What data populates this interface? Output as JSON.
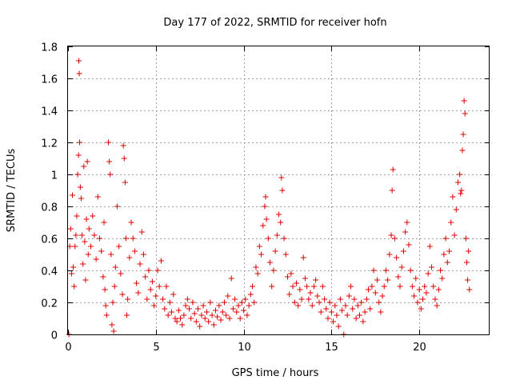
{
  "chart_data": {
    "type": "scatter",
    "title": "Day 177 of 2022, SRMTID for receiver hofn",
    "xlabel": "GPS time / hours",
    "ylabel": "SRMTID / TECUs",
    "xlim": [
      0,
      24
    ],
    "ylim": [
      0,
      1.8
    ],
    "xticks": [
      0,
      5,
      10,
      15,
      20
    ],
    "yticks": [
      0,
      0.2,
      0.4,
      0.6,
      0.8,
      1,
      1.2,
      1.4,
      1.6,
      1.8
    ],
    "xtick_labels": [
      "0",
      "5",
      "10",
      "15",
      "20"
    ],
    "ytick_labels": [
      "0",
      "0.2",
      "0.4",
      "0.6",
      "0.8",
      "1",
      "1.2",
      "1.4",
      "1.6",
      "1.8"
    ],
    "grid": true,
    "marker": "+",
    "color": "#e00000",
    "series": [
      {
        "name": "hofn",
        "points": [
          [
            0.05,
            0.0
          ],
          [
            0.1,
            0.55
          ],
          [
            0.15,
            0.66
          ],
          [
            0.2,
            0.38
          ],
          [
            0.25,
            0.87
          ],
          [
            0.3,
            0.42
          ],
          [
            0.35,
            0.3
          ],
          [
            0.4,
            0.55
          ],
          [
            0.45,
            0.62
          ],
          [
            0.5,
            0.74
          ],
          [
            0.55,
            1.0
          ],
          [
            0.6,
            1.12
          ],
          [
            0.62,
            1.71
          ],
          [
            0.64,
            1.63
          ],
          [
            0.66,
            1.2
          ],
          [
            0.7,
            0.92
          ],
          [
            0.75,
            0.85
          ],
          [
            0.8,
            0.62
          ],
          [
            0.85,
            0.44
          ],
          [
            0.9,
            1.05
          ],
          [
            0.95,
            0.58
          ],
          [
            1.0,
            0.34
          ],
          [
            1.05,
            0.72
          ],
          [
            1.1,
            1.08
          ],
          [
            1.15,
            0.5
          ],
          [
            1.2,
            0.66
          ],
          [
            1.3,
            0.55
          ],
          [
            1.4,
            0.74
          ],
          [
            1.5,
            0.62
          ],
          [
            1.6,
            0.47
          ],
          [
            1.7,
            0.86
          ],
          [
            1.8,
            0.6
          ],
          [
            1.9,
            0.52
          ],
          [
            2.0,
            0.36
          ],
          [
            2.05,
            0.7
          ],
          [
            2.1,
            0.28
          ],
          [
            2.15,
            0.18
          ],
          [
            2.2,
            0.12
          ],
          [
            2.3,
            1.2
          ],
          [
            2.35,
            1.08
          ],
          [
            2.4,
            1.0
          ],
          [
            2.45,
            0.5
          ],
          [
            2.5,
            0.06
          ],
          [
            2.55,
            0.2
          ],
          [
            2.6,
            0.02
          ],
          [
            2.65,
            0.3
          ],
          [
            2.7,
            0.42
          ],
          [
            2.8,
            0.8
          ],
          [
            2.9,
            0.55
          ],
          [
            3.0,
            0.38
          ],
          [
            3.1,
            0.25
          ],
          [
            3.15,
            1.18
          ],
          [
            3.2,
            1.1
          ],
          [
            3.25,
            0.95
          ],
          [
            3.3,
            0.6
          ],
          [
            3.35,
            0.12
          ],
          [
            3.4,
            0.22
          ],
          [
            3.5,
            0.48
          ],
          [
            3.6,
            0.7
          ],
          [
            3.7,
            0.6
          ],
          [
            3.8,
            0.52
          ],
          [
            3.9,
            0.32
          ],
          [
            4.0,
            0.26
          ],
          [
            4.1,
            0.44
          ],
          [
            4.2,
            0.64
          ],
          [
            4.3,
            0.5
          ],
          [
            4.4,
            0.36
          ],
          [
            4.5,
            0.22
          ],
          [
            4.6,
            0.4
          ],
          [
            4.7,
            0.28
          ],
          [
            4.8,
            0.33
          ],
          [
            4.9,
            0.18
          ],
          [
            5.0,
            0.24
          ],
          [
            5.1,
            0.4
          ],
          [
            5.2,
            0.3
          ],
          [
            5.3,
            0.46
          ],
          [
            5.4,
            0.22
          ],
          [
            5.5,
            0.16
          ],
          [
            5.6,
            0.3
          ],
          [
            5.7,
            0.12
          ],
          [
            5.8,
            0.2
          ],
          [
            5.9,
            0.14
          ],
          [
            6.0,
            0.25
          ],
          [
            6.1,
            0.1
          ],
          [
            6.2,
            0.08
          ],
          [
            6.3,
            0.15
          ],
          [
            6.4,
            0.1
          ],
          [
            6.5,
            0.06
          ],
          [
            6.6,
            0.12
          ],
          [
            6.7,
            0.18
          ],
          [
            6.8,
            0.22
          ],
          [
            6.9,
            0.16
          ],
          [
            7.0,
            0.1
          ],
          [
            7.1,
            0.2
          ],
          [
            7.2,
            0.13
          ],
          [
            7.3,
            0.08
          ],
          [
            7.4,
            0.16
          ],
          [
            7.5,
            0.05
          ],
          [
            7.6,
            0.12
          ],
          [
            7.7,
            0.18
          ],
          [
            7.8,
            0.1
          ],
          [
            7.9,
            0.14
          ],
          [
            8.0,
            0.08
          ],
          [
            8.1,
            0.2
          ],
          [
            8.2,
            0.12
          ],
          [
            8.3,
            0.06
          ],
          [
            8.4,
            0.15
          ],
          [
            8.5,
            0.11
          ],
          [
            8.6,
            0.18
          ],
          [
            8.7,
            0.09
          ],
          [
            8.8,
            0.14
          ],
          [
            8.9,
            0.2
          ],
          [
            9.0,
            0.12
          ],
          [
            9.1,
            0.24
          ],
          [
            9.2,
            0.1
          ],
          [
            9.3,
            0.35
          ],
          [
            9.4,
            0.16
          ],
          [
            9.5,
            0.22
          ],
          [
            9.6,
            0.14
          ],
          [
            9.7,
            0.18
          ],
          [
            9.8,
            0.1
          ],
          [
            9.9,
            0.2
          ],
          [
            10.0,
            0.15
          ],
          [
            10.1,
            0.22
          ],
          [
            10.2,
            0.12
          ],
          [
            10.3,
            0.18
          ],
          [
            10.4,
            0.25
          ],
          [
            10.5,
            0.3
          ],
          [
            10.6,
            0.2
          ],
          [
            10.7,
            0.42
          ],
          [
            10.8,
            0.38
          ],
          [
            10.9,
            0.55
          ],
          [
            11.0,
            0.5
          ],
          [
            11.1,
            0.68
          ],
          [
            11.2,
            0.8
          ],
          [
            11.25,
            0.86
          ],
          [
            11.3,
            0.72
          ],
          [
            11.4,
            0.6
          ],
          [
            11.5,
            0.45
          ],
          [
            11.6,
            0.3
          ],
          [
            11.7,
            0.4
          ],
          [
            11.8,
            0.52
          ],
          [
            11.9,
            0.62
          ],
          [
            12.0,
            0.75
          ],
          [
            12.1,
            0.7
          ],
          [
            12.15,
            0.98
          ],
          [
            12.2,
            0.9
          ],
          [
            12.3,
            0.6
          ],
          [
            12.4,
            0.5
          ],
          [
            12.5,
            0.36
          ],
          [
            12.6,
            0.25
          ],
          [
            12.7,
            0.38
          ],
          [
            12.8,
            0.3
          ],
          [
            12.9,
            0.2
          ],
          [
            13.0,
            0.32
          ],
          [
            13.1,
            0.18
          ],
          [
            13.2,
            0.28
          ],
          [
            13.3,
            0.22
          ],
          [
            13.4,
            0.48
          ],
          [
            13.5,
            0.35
          ],
          [
            13.6,
            0.3
          ],
          [
            13.7,
            0.22
          ],
          [
            13.8,
            0.26
          ],
          [
            13.9,
            0.18
          ],
          [
            14.0,
            0.3
          ],
          [
            14.1,
            0.34
          ],
          [
            14.2,
            0.24
          ],
          [
            14.3,
            0.2
          ],
          [
            14.4,
            0.14
          ],
          [
            14.5,
            0.3
          ],
          [
            14.6,
            0.22
          ],
          [
            14.7,
            0.16
          ],
          [
            14.8,
            0.1
          ],
          [
            14.9,
            0.2
          ],
          [
            15.0,
            0.14
          ],
          [
            15.1,
            0.08
          ],
          [
            15.2,
            0.18
          ],
          [
            15.3,
            0.12
          ],
          [
            15.4,
            0.05
          ],
          [
            15.5,
            0.22
          ],
          [
            15.6,
            0.15
          ],
          [
            15.7,
            0.0
          ],
          [
            15.8,
            0.18
          ],
          [
            15.9,
            0.12
          ],
          [
            16.0,
            0.24
          ],
          [
            16.1,
            0.3
          ],
          [
            16.2,
            0.16
          ],
          [
            16.3,
            0.22
          ],
          [
            16.4,
            0.1
          ],
          [
            16.5,
            0.18
          ],
          [
            16.6,
            0.12
          ],
          [
            16.7,
            0.2
          ],
          [
            16.8,
            0.08
          ],
          [
            16.9,
            0.14
          ],
          [
            17.0,
            0.22
          ],
          [
            17.1,
            0.28
          ],
          [
            17.2,
            0.16
          ],
          [
            17.3,
            0.3
          ],
          [
            17.4,
            0.4
          ],
          [
            17.5,
            0.26
          ],
          [
            17.6,
            0.34
          ],
          [
            17.7,
            0.2
          ],
          [
            17.8,
            0.14
          ],
          [
            17.9,
            0.24
          ],
          [
            18.0,
            0.3
          ],
          [
            18.1,
            0.4
          ],
          [
            18.2,
            0.34
          ],
          [
            18.3,
            0.5
          ],
          [
            18.4,
            0.62
          ],
          [
            18.45,
            0.9
          ],
          [
            18.5,
            1.03
          ],
          [
            18.6,
            0.6
          ],
          [
            18.7,
            0.48
          ],
          [
            18.8,
            0.36
          ],
          [
            18.9,
            0.3
          ],
          [
            19.0,
            0.42
          ],
          [
            19.1,
            0.52
          ],
          [
            19.2,
            0.64
          ],
          [
            19.3,
            0.7
          ],
          [
            19.4,
            0.56
          ],
          [
            19.5,
            0.4
          ],
          [
            19.6,
            0.3
          ],
          [
            19.7,
            0.24
          ],
          [
            19.8,
            0.35
          ],
          [
            19.9,
            0.2
          ],
          [
            20.0,
            0.28
          ],
          [
            20.1,
            0.16
          ],
          [
            20.2,
            0.22
          ],
          [
            20.3,
            0.3
          ],
          [
            20.4,
            0.26
          ],
          [
            20.5,
            0.38
          ],
          [
            20.6,
            0.55
          ],
          [
            20.7,
            0.42
          ],
          [
            20.8,
            0.3
          ],
          [
            20.9,
            0.22
          ],
          [
            21.0,
            0.18
          ],
          [
            21.1,
            0.28
          ],
          [
            21.2,
            0.4
          ],
          [
            21.3,
            0.35
          ],
          [
            21.4,
            0.5
          ],
          [
            21.5,
            0.6
          ],
          [
            21.6,
            0.45
          ],
          [
            21.7,
            0.52
          ],
          [
            21.8,
            0.7
          ],
          [
            21.9,
            0.86
          ],
          [
            22.0,
            0.62
          ],
          [
            22.1,
            0.78
          ],
          [
            22.2,
            0.95
          ],
          [
            22.3,
            1.0
          ],
          [
            22.35,
            0.88
          ],
          [
            22.4,
            0.9
          ],
          [
            22.45,
            1.15
          ],
          [
            22.5,
            1.25
          ],
          [
            22.55,
            1.46
          ],
          [
            22.6,
            1.38
          ],
          [
            22.65,
            0.6
          ],
          [
            22.7,
            0.45
          ],
          [
            22.75,
            0.34
          ],
          [
            22.8,
            0.52
          ],
          [
            22.85,
            0.28
          ]
        ]
      }
    ]
  }
}
